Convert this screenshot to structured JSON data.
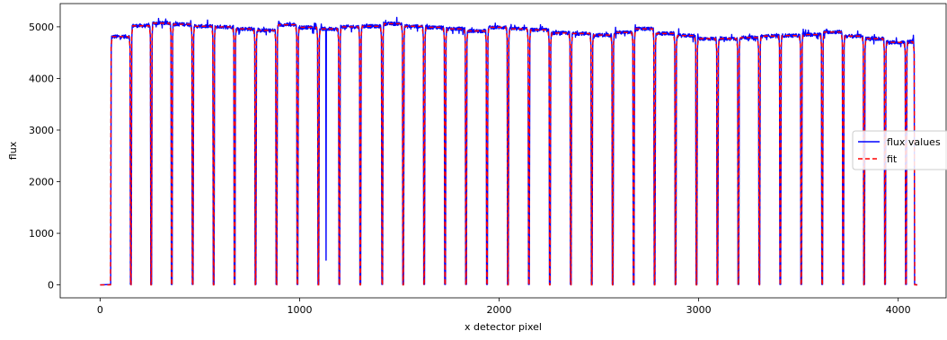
{
  "chart_data": {
    "type": "line",
    "xlabel": "x detector pixel",
    "ylabel": "flux",
    "xlim": [
      -200,
      4240
    ],
    "ylim": [
      -250,
      5450
    ],
    "xticks": [
      0,
      1000,
      2000,
      3000,
      4000
    ],
    "yticks": [
      0,
      1000,
      2000,
      3000,
      4000,
      5000
    ],
    "xtick_labels": [
      "0",
      "1000",
      "2000",
      "3000",
      "4000"
    ],
    "ytick_labels": [
      "0",
      "1000",
      "2000",
      "3000",
      "4000",
      "5000"
    ],
    "grid": false,
    "legend_position": "center-right",
    "baseline_flux": 0,
    "start_x": 0,
    "end_x": 4096,
    "series": [
      {
        "name": "flux values",
        "color": "#0000ff",
        "style": "solid"
      },
      {
        "name": "fit",
        "color": "#ff0000",
        "style": "dashed"
      }
    ],
    "plateaus": [
      {
        "x_start": 55,
        "x_end": 150,
        "flux": 4810
      },
      {
        "x_start": 158,
        "x_end": 252,
        "flux": 5020
      },
      {
        "x_start": 260,
        "x_end": 355,
        "flux": 5070
      },
      {
        "x_start": 363,
        "x_end": 460,
        "flux": 5050
      },
      {
        "x_start": 468,
        "x_end": 565,
        "flux": 5010
      },
      {
        "x_start": 573,
        "x_end": 670,
        "flux": 5000
      },
      {
        "x_start": 678,
        "x_end": 775,
        "flux": 4960
      },
      {
        "x_start": 783,
        "x_end": 880,
        "flux": 4930
      },
      {
        "x_start": 888,
        "x_end": 985,
        "flux": 5040
      },
      {
        "x_start": 993,
        "x_end": 1090,
        "flux": 4990
      },
      {
        "x_start": 1098,
        "x_end": 1195,
        "flux": 4960
      },
      {
        "x_start": 1203,
        "x_end": 1300,
        "flux": 5000
      },
      {
        "x_start": 1308,
        "x_end": 1410,
        "flux": 5010
      },
      {
        "x_start": 1418,
        "x_end": 1515,
        "flux": 5060
      },
      {
        "x_start": 1523,
        "x_end": 1620,
        "flux": 5010
      },
      {
        "x_start": 1628,
        "x_end": 1725,
        "flux": 4990
      },
      {
        "x_start": 1733,
        "x_end": 1830,
        "flux": 4960
      },
      {
        "x_start": 1838,
        "x_end": 1935,
        "flux": 4920
      },
      {
        "x_start": 1943,
        "x_end": 2040,
        "flux": 4990
      },
      {
        "x_start": 2048,
        "x_end": 2145,
        "flux": 4960
      },
      {
        "x_start": 2153,
        "x_end": 2250,
        "flux": 4940
      },
      {
        "x_start": 2258,
        "x_end": 2355,
        "flux": 4880
      },
      {
        "x_start": 2363,
        "x_end": 2460,
        "flux": 4870
      },
      {
        "x_start": 2468,
        "x_end": 2565,
        "flux": 4840
      },
      {
        "x_start": 2573,
        "x_end": 2670,
        "flux": 4890
      },
      {
        "x_start": 2678,
        "x_end": 2775,
        "flux": 4960
      },
      {
        "x_start": 2783,
        "x_end": 2880,
        "flux": 4870
      },
      {
        "x_start": 2888,
        "x_end": 2985,
        "flux": 4830
      },
      {
        "x_start": 2993,
        "x_end": 3090,
        "flux": 4770
      },
      {
        "x_start": 3098,
        "x_end": 3195,
        "flux": 4770
      },
      {
        "x_start": 3203,
        "x_end": 3300,
        "flux": 4790
      },
      {
        "x_start": 3308,
        "x_end": 3405,
        "flux": 4820
      },
      {
        "x_start": 3413,
        "x_end": 3510,
        "flux": 4830
      },
      {
        "x_start": 3518,
        "x_end": 3615,
        "flux": 4850
      },
      {
        "x_start": 3623,
        "x_end": 3720,
        "flux": 4900
      },
      {
        "x_start": 3728,
        "x_end": 3825,
        "flux": 4820
      },
      {
        "x_start": 3833,
        "x_end": 3930,
        "flux": 4770
      },
      {
        "x_start": 3938,
        "x_end": 4035,
        "flux": 4700
      },
      {
        "x_start": 4043,
        "x_end": 4080,
        "flux": 4710
      }
    ],
    "anomalies": [
      {
        "x": 1133,
        "flux": 480
      }
    ]
  }
}
